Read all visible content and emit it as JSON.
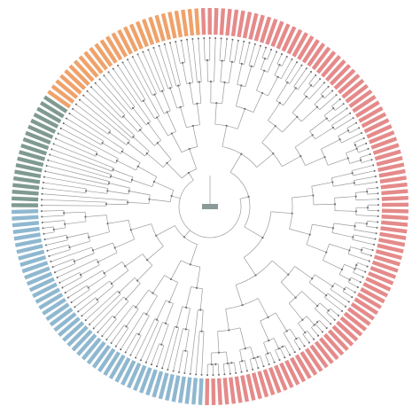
{
  "tree": {
    "groups": [
      {
        "color": "#e58a8a",
        "size": 95
      },
      {
        "color": "#8fb8d0",
        "size": 45
      },
      {
        "color": "#7f9a91",
        "size": 18
      },
      {
        "color": "#efa26a",
        "size": 27
      }
    ]
  }
}
